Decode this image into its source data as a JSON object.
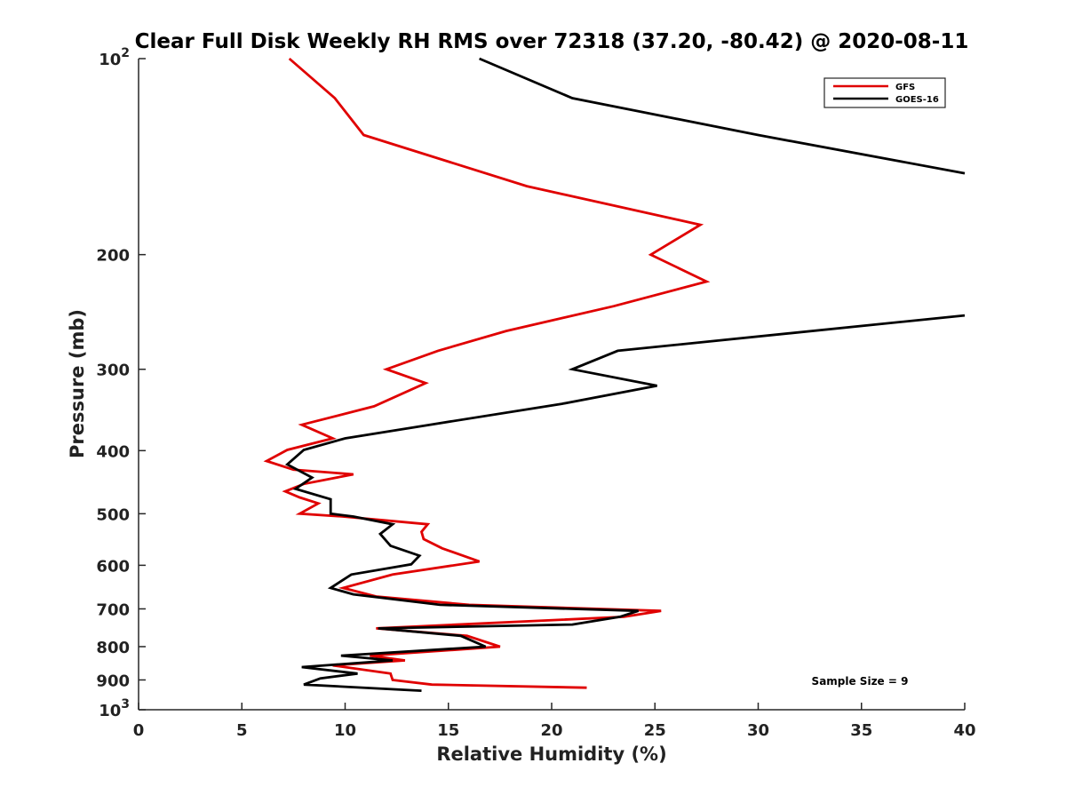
{
  "chart_data": {
    "type": "line",
    "title": "Clear Full Disk Weekly RH RMS over 72318 (37.20, -80.42) @ 2020-08-11",
    "xlabel": "Relative Humidity (%)",
    "ylabel": "Pressure (mb)",
    "xlim": [
      0,
      40
    ],
    "ylim": [
      100,
      1000
    ],
    "yscale": "log",
    "y_reversed": true,
    "x_ticks": [
      0,
      5,
      10,
      15,
      20,
      25,
      30,
      35,
      40
    ],
    "x_tick_labels": [
      "0",
      "5",
      "10",
      "15",
      "20",
      "25",
      "30",
      "35",
      "40"
    ],
    "y_ticks": [
      100,
      200,
      300,
      400,
      500,
      600,
      700,
      800,
      900,
      1000
    ],
    "y_tick_labels": [
      {
        "base": "10",
        "exp": "2"
      },
      {
        "base": "200",
        "exp": ""
      },
      {
        "base": "300",
        "exp": ""
      },
      {
        "base": "400",
        "exp": ""
      },
      {
        "base": "500",
        "exp": ""
      },
      {
        "base": "600",
        "exp": ""
      },
      {
        "base": "700",
        "exp": ""
      },
      {
        "base": "800",
        "exp": ""
      },
      {
        "base": "900",
        "exp": ""
      },
      {
        "base": "10",
        "exp": "3"
      }
    ],
    "grid": false,
    "legend_position": "top-right",
    "annotation": "Sample Size = 9",
    "series": [
      {
        "name": "GFS",
        "color": "#e00000",
        "points": [
          [
            7.3,
            100
          ],
          [
            9.5,
            115
          ],
          [
            10.9,
            131
          ],
          [
            18.8,
            157
          ],
          [
            27.2,
            180
          ],
          [
            24.8,
            200
          ],
          [
            27.5,
            220
          ],
          [
            23,
            240
          ],
          [
            17.8,
            262
          ],
          [
            14.5,
            281
          ],
          [
            12,
            300
          ],
          [
            13.9,
            315
          ],
          [
            11.4,
            342
          ],
          [
            7.9,
            365
          ],
          [
            9.4,
            383
          ],
          [
            7.2,
            399
          ],
          [
            6.2,
            415
          ],
          [
            7.5,
            428
          ],
          [
            10.4,
            435
          ],
          [
            8,
            450
          ],
          [
            7.1,
            462
          ],
          [
            7.8,
            472
          ],
          [
            8.7,
            482
          ],
          [
            7.8,
            500
          ],
          [
            9.9,
            505
          ],
          [
            14,
            519
          ],
          [
            13.7,
            533
          ],
          [
            13.8,
            547
          ],
          [
            14.7,
            565
          ],
          [
            16.5,
            592
          ],
          [
            12.3,
            620
          ],
          [
            9.9,
            650
          ],
          [
            11.5,
            670
          ],
          [
            16,
            690
          ],
          [
            25.3,
            705
          ],
          [
            23.5,
            720
          ],
          [
            11.5,
            750
          ],
          [
            15.9,
            770
          ],
          [
            17.5,
            800
          ],
          [
            11.2,
            826
          ],
          [
            12.9,
            840
          ],
          [
            9.4,
            855
          ],
          [
            12.2,
            880
          ],
          [
            12.3,
            900
          ],
          [
            14.2,
            915
          ],
          [
            21.7,
            925
          ]
        ]
      },
      {
        "name": "GOES-16",
        "color": "#000000",
        "points": [
          [
            16.5,
            100
          ],
          [
            21,
            115
          ],
          [
            30,
            131
          ],
          [
            40,
            150
          ]
        ]
      },
      {
        "name": "GOES-16",
        "color": "#000000",
        "points": [
          [
            40,
            248
          ],
          [
            23.2,
            281
          ],
          [
            21,
            300
          ],
          [
            25.1,
            318
          ],
          [
            20.5,
            339
          ],
          [
            14.1,
            365
          ],
          [
            10,
            383
          ],
          [
            8,
            399
          ],
          [
            7.2,
            420
          ],
          [
            8.4,
            440
          ],
          [
            7.6,
            458
          ],
          [
            9.3,
            475
          ],
          [
            9.3,
            500
          ],
          [
            10.4,
            505
          ],
          [
            12.3,
            519
          ],
          [
            11.7,
            537
          ],
          [
            12.2,
            560
          ],
          [
            13.6,
            580
          ],
          [
            13.2,
            598
          ],
          [
            10.3,
            620
          ],
          [
            9.3,
            650
          ],
          [
            10.4,
            665
          ],
          [
            14.6,
            690
          ],
          [
            24.2,
            705
          ],
          [
            23.3,
            720
          ],
          [
            21,
            740
          ],
          [
            11.6,
            750
          ],
          [
            15.6,
            770
          ],
          [
            16.8,
            800
          ],
          [
            9.8,
            826
          ],
          [
            12.3,
            840
          ],
          [
            7.9,
            860
          ],
          [
            10.6,
            880
          ],
          [
            8.8,
            895
          ],
          [
            8,
            915
          ],
          [
            13.7,
            935
          ]
        ]
      }
    ]
  }
}
